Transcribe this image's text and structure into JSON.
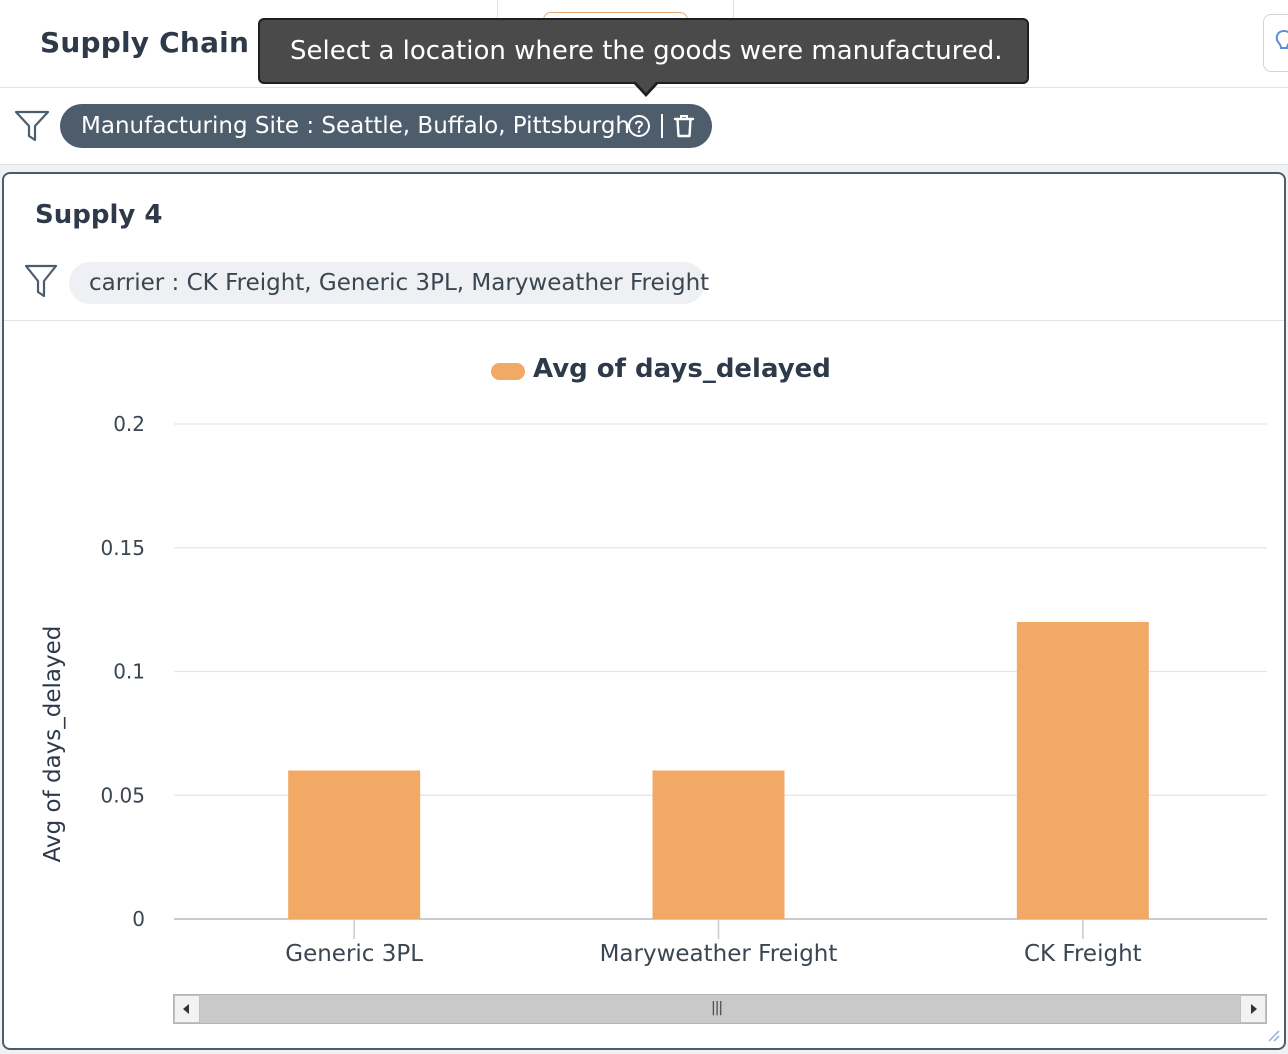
{
  "header": {
    "title": "Supply Chain"
  },
  "tooltip": {
    "text": "Select a location where the goods were manufactured."
  },
  "global_filter": {
    "label": "Manufacturing Site : Seattle, Buffalo, Pittsburgh"
  },
  "card": {
    "title": "Supply 4",
    "filter_label": "carrier : CK Freight, Generic 3PL, Maryweather Freight"
  },
  "colors": {
    "bar": "#f2a966",
    "chip_dark": "#4e5d6c"
  },
  "chart_data": {
    "type": "bar",
    "categories": [
      "Generic 3PL",
      "Maryweather Freight",
      "CK Freight"
    ],
    "series": [
      {
        "name": "Avg of days_delayed",
        "values": [
          0.06,
          0.06,
          0.12
        ]
      }
    ],
    "ylabel": "Avg of days_delayed",
    "xlabel": "",
    "ylim": [
      0,
      0.2
    ],
    "yticks": [
      0,
      0.05,
      0.1,
      0.15,
      0.2
    ],
    "ytick_labels": [
      "0",
      "0.05",
      "0.1",
      "0.15",
      "0.2"
    ],
    "grid": true,
    "legend": "top-center"
  }
}
